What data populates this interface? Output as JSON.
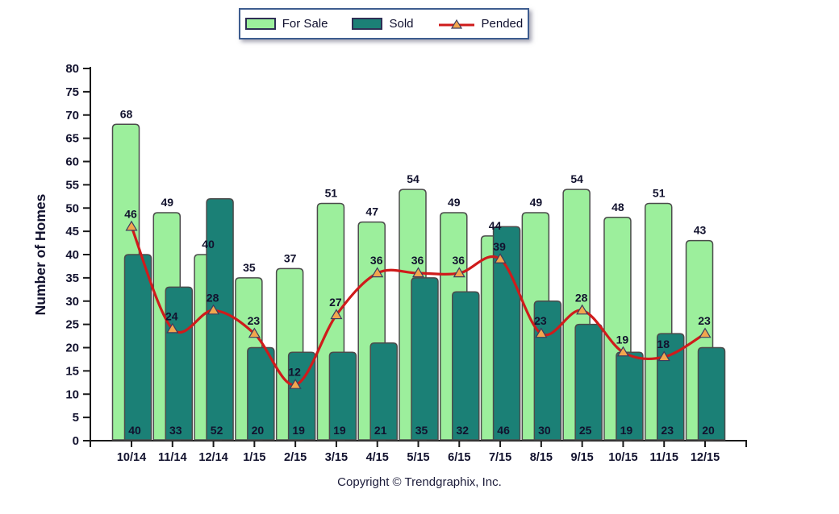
{
  "chart_data": {
    "type": "bar+line",
    "categories": [
      "10/14",
      "11/14",
      "12/14",
      "1/15",
      "2/15",
      "3/15",
      "4/15",
      "5/15",
      "6/15",
      "7/15",
      "8/15",
      "9/15",
      "10/15",
      "11/15",
      "12/15"
    ],
    "series": [
      {
        "name": "For Sale",
        "type": "bar",
        "color": "#9cef9c",
        "values": [
          68,
          49,
          40,
          35,
          37,
          51,
          47,
          54,
          49,
          44,
          49,
          54,
          48,
          51,
          43
        ]
      },
      {
        "name": "Sold",
        "type": "bar",
        "color": "#1b8076",
        "values": [
          40,
          33,
          52,
          20,
          19,
          19,
          21,
          35,
          32,
          46,
          30,
          25,
          19,
          23,
          20
        ]
      },
      {
        "name": "Pended",
        "type": "line",
        "color": "#cf1b1b",
        "marker": "triangle",
        "marker_color": "#f2a64e",
        "values": [
          46,
          24,
          28,
          23,
          12,
          27,
          36,
          36,
          36,
          39,
          23,
          28,
          19,
          18,
          23
        ]
      }
    ],
    "title": "",
    "xlabel": "",
    "ylabel": "Number of Homes",
    "ylim": [
      0,
      80
    ],
    "ytick_step": 5,
    "grid": false,
    "legend_position": "top-center"
  },
  "footer": {
    "copyright": "Copyright © Trendgraphix, Inc."
  }
}
